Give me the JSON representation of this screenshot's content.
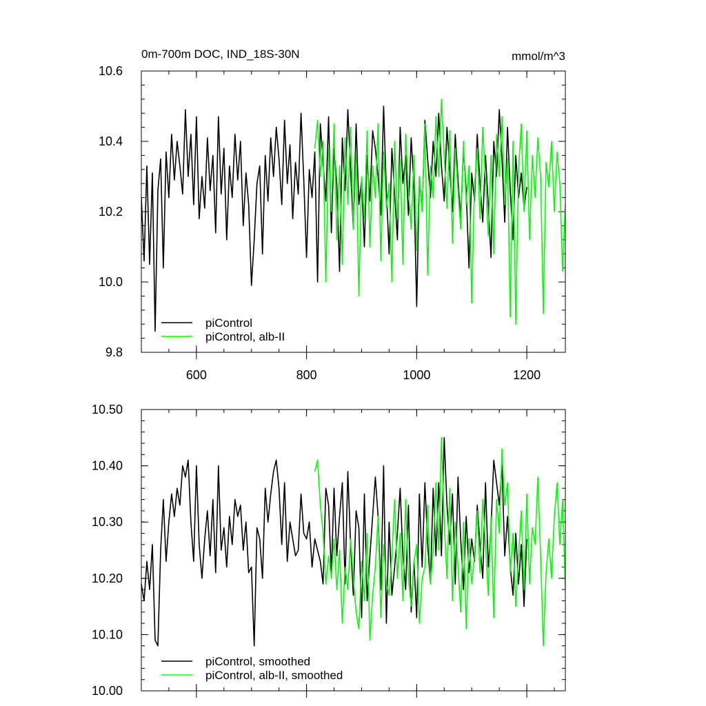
{
  "chart_data": [
    {
      "type": "line",
      "title": "0m-700m DOC, IND_18S-30N",
      "units": "mmol/m^3",
      "xlim": [
        500,
        1270
      ],
      "ylim": [
        9.8,
        10.6
      ],
      "xticks": [
        600,
        800,
        1000,
        1200
      ],
      "xtick_labels": [
        "600",
        "800",
        "1000",
        "1200"
      ],
      "yticks": [
        9.8,
        10.0,
        10.2,
        10.4,
        10.6
      ],
      "ytick_labels": [
        "9.8",
        "10.0",
        "10.2",
        "10.4",
        "10.6"
      ],
      "grid": false,
      "legend_position": "bottom-left",
      "series": [
        {
          "name": "piControl",
          "color": "#000000",
          "x": [
            500,
            505,
            510,
            515,
            520,
            525,
            530,
            535,
            540,
            545,
            550,
            555,
            560,
            565,
            570,
            575,
            580,
            585,
            590,
            595,
            600,
            605,
            610,
            615,
            620,
            625,
            630,
            635,
            640,
            645,
            650,
            655,
            660,
            665,
            670,
            675,
            680,
            685,
            690,
            695,
            700,
            705,
            710,
            715,
            720,
            725,
            730,
            735,
            740,
            745,
            750,
            755,
            760,
            765,
            770,
            775,
            780,
            785,
            790,
            795,
            800,
            805,
            810,
            815,
            820,
            825,
            830,
            835,
            840,
            845,
            850,
            855,
            860,
            865,
            870,
            875,
            880,
            885,
            890,
            895,
            900,
            905,
            910,
            915,
            920,
            925,
            930,
            935,
            940,
            945,
            950,
            955,
            960,
            965,
            970,
            975,
            980,
            985,
            990,
            995,
            1000,
            1005,
            1010,
            1015,
            1020,
            1025,
            1030,
            1035,
            1040,
            1045,
            1050,
            1055,
            1060,
            1065,
            1070,
            1075,
            1080,
            1085,
            1090,
            1095,
            1100,
            1105,
            1110,
            1115,
            1120,
            1125,
            1130,
            1135,
            1140,
            1145,
            1150,
            1155,
            1160,
            1165,
            1170,
            1175,
            1180,
            1185,
            1190,
            1195,
            1200
          ],
          "y": [
            10.24,
            10.06,
            10.33,
            10.05,
            10.31,
            9.86,
            10.26,
            10.35,
            10.04,
            10.37,
            10.24,
            10.42,
            10.29,
            10.4,
            10.33,
            10.25,
            10.49,
            10.3,
            10.42,
            10.22,
            10.47,
            10.18,
            10.3,
            10.21,
            10.41,
            10.26,
            10.36,
            10.14,
            10.47,
            10.25,
            10.38,
            10.12,
            10.33,
            10.24,
            10.42,
            10.29,
            10.4,
            10.16,
            10.31,
            10.22,
            9.99,
            10.12,
            10.28,
            10.33,
            10.08,
            10.36,
            10.23,
            10.41,
            10.3,
            10.44,
            10.35,
            10.22,
            10.46,
            10.28,
            10.39,
            10.18,
            10.34,
            10.25,
            10.48,
            10.29,
            10.07,
            10.32,
            10.24,
            10.37,
            10.0,
            10.45,
            10.34,
            10.23,
            10.47,
            10.14,
            10.38,
            10.28,
            10.03,
            10.41,
            10.26,
            10.49,
            10.32,
            10.15,
            10.45,
            10.22,
            10.29,
            10.1,
            10.36,
            10.23,
            10.43,
            10.38,
            10.3,
            10.19,
            10.5,
            10.26,
            10.08,
            10.38,
            10.25,
            10.12,
            10.44,
            10.28,
            10.36,
            10.19,
            10.41,
            10.27,
            9.93,
            10.3,
            10.2,
            10.46,
            10.35,
            10.24,
            10.4,
            10.3,
            10.48,
            10.33,
            10.23,
            10.44,
            10.32,
            10.2,
            10.42,
            10.29,
            10.18,
            10.38,
            10.26,
            10.04,
            10.31,
            10.23,
            10.42,
            10.28,
            10.17,
            10.36,
            10.22,
            10.07,
            10.4,
            10.3,
            10.49,
            10.35,
            10.17,
            10.44,
            10.26,
            10.12,
            10.36,
            10.24,
            10.31,
            10.21,
            10.27
          ]
        },
        {
          "name": "piControl, alb-II",
          "color": "#00ff00",
          "x": [
            815,
            820,
            825,
            830,
            835,
            840,
            845,
            850,
            855,
            860,
            865,
            870,
            875,
            880,
            885,
            890,
            895,
            900,
            905,
            910,
            915,
            920,
            925,
            930,
            935,
            940,
            945,
            950,
            955,
            960,
            965,
            970,
            975,
            980,
            985,
            990,
            995,
            1000,
            1005,
            1010,
            1015,
            1020,
            1025,
            1030,
            1035,
            1040,
            1045,
            1050,
            1055,
            1060,
            1065,
            1070,
            1075,
            1080,
            1085,
            1090,
            1095,
            1100,
            1105,
            1110,
            1115,
            1120,
            1125,
            1130,
            1135,
            1140,
            1145,
            1150,
            1155,
            1160,
            1165,
            1170,
            1175,
            1180,
            1185,
            1190,
            1195,
            1200,
            1205,
            1210,
            1215,
            1220,
            1225,
            1230,
            1235,
            1240,
            1245,
            1250,
            1255,
            1260,
            1265,
            1270
          ],
          "y": [
            10.38,
            10.46,
            10.3,
            10.4,
            10.0,
            10.38,
            10.2,
            10.45,
            10.12,
            10.33,
            10.05,
            10.41,
            10.22,
            10.44,
            10.15,
            10.36,
            9.96,
            10.3,
            10.18,
            10.43,
            10.1,
            10.33,
            10.24,
            10.45,
            10.06,
            10.37,
            10.21,
            10.28,
            10.0,
            10.4,
            10.18,
            10.35,
            10.05,
            10.42,
            10.26,
            10.15,
            10.36,
            10.09,
            10.3,
            10.2,
            10.45,
            10.02,
            10.33,
            10.24,
            10.47,
            10.3,
            10.52,
            10.36,
            10.21,
            10.43,
            10.11,
            10.38,
            10.26,
            10.15,
            10.4,
            10.22,
            10.33,
            9.94,
            10.27,
            10.38,
            10.18,
            10.44,
            10.29,
            10.13,
            10.36,
            10.08,
            10.42,
            10.3,
            10.47,
            10.22,
            10.35,
            9.9,
            10.4,
            9.88,
            10.32,
            10.45,
            10.2,
            10.43,
            10.12,
            10.36,
            10.24,
            10.41,
            10.3,
            9.91,
            10.34,
            10.27,
            10.4,
            10.2,
            10.37,
            10.28,
            10.03,
            10.22
          ]
        }
      ]
    },
    {
      "type": "line",
      "title": "",
      "units": "",
      "xlim": [
        500,
        1270
      ],
      "ylim": [
        10.0,
        10.5
      ],
      "xticks": [
        600,
        800,
        1000,
        1200
      ],
      "xtick_labels": [
        "",
        "",
        "",
        ""
      ],
      "yticks": [
        10.0,
        10.1,
        10.2,
        10.3,
        10.4,
        10.5
      ],
      "ytick_labels": [
        "10.00",
        "10.10",
        "10.20",
        "10.30",
        "10.40",
        "10.50"
      ],
      "grid": false,
      "legend_position": "bottom-left",
      "series": [
        {
          "name": "piControl, smoothed",
          "color": "#000000",
          "x": [
            500,
            505,
            510,
            515,
            520,
            525,
            530,
            535,
            540,
            545,
            550,
            555,
            560,
            565,
            570,
            575,
            580,
            585,
            590,
            595,
            600,
            605,
            610,
            615,
            620,
            625,
            630,
            635,
            640,
            645,
            650,
            655,
            660,
            665,
            670,
            675,
            680,
            685,
            690,
            695,
            700,
            705,
            710,
            715,
            720,
            725,
            730,
            735,
            740,
            745,
            750,
            755,
            760,
            765,
            770,
            775,
            780,
            785,
            790,
            795,
            800,
            805,
            810,
            815,
            820,
            825,
            830,
            835,
            840,
            845,
            850,
            855,
            860,
            865,
            870,
            875,
            880,
            885,
            890,
            895,
            900,
            905,
            910,
            915,
            920,
            925,
            930,
            935,
            940,
            945,
            950,
            955,
            960,
            965,
            970,
            975,
            980,
            985,
            990,
            995,
            1000,
            1005,
            1010,
            1015,
            1020,
            1025,
            1030,
            1035,
            1040,
            1045,
            1050,
            1055,
            1060,
            1065,
            1070,
            1075,
            1080,
            1085,
            1090,
            1095,
            1100,
            1105,
            1110,
            1115,
            1120,
            1125,
            1130,
            1135,
            1140,
            1145,
            1150,
            1155,
            1160,
            1165,
            1170,
            1175,
            1180,
            1185,
            1190,
            1195,
            1200
          ],
          "y": [
            10.19,
            10.16,
            10.23,
            10.18,
            10.26,
            10.09,
            10.08,
            10.25,
            10.34,
            10.23,
            10.3,
            10.35,
            10.31,
            10.36,
            10.33,
            10.4,
            10.38,
            10.41,
            10.3,
            10.23,
            10.4,
            10.26,
            10.2,
            10.27,
            10.32,
            10.24,
            10.34,
            10.21,
            10.4,
            10.25,
            10.29,
            10.22,
            10.31,
            10.26,
            10.34,
            10.31,
            10.33,
            10.25,
            10.3,
            10.21,
            10.22,
            10.08,
            10.29,
            10.27,
            10.2,
            10.36,
            10.3,
            10.35,
            10.39,
            10.41,
            10.36,
            10.26,
            10.37,
            10.23,
            10.3,
            10.27,
            10.24,
            10.25,
            10.35,
            10.28,
            10.27,
            10.3,
            10.22,
            10.27,
            10.25,
            10.23,
            10.19,
            10.36,
            10.33,
            10.21,
            10.36,
            10.24,
            10.31,
            10.37,
            10.19,
            10.39,
            10.26,
            10.17,
            10.32,
            10.29,
            10.13,
            10.35,
            10.16,
            10.24,
            10.31,
            10.38,
            10.31,
            10.18,
            10.4,
            10.12,
            10.3,
            10.17,
            10.22,
            10.28,
            10.36,
            10.24,
            10.18,
            10.33,
            10.14,
            10.23,
            10.13,
            10.35,
            10.22,
            10.37,
            10.26,
            10.19,
            10.36,
            10.24,
            10.37,
            10.24,
            10.45,
            10.33,
            10.26,
            10.35,
            10.19,
            10.38,
            10.27,
            10.18,
            10.31,
            10.21,
            10.27,
            10.23,
            10.33,
            10.26,
            10.2,
            10.37,
            10.22,
            10.29,
            10.41,
            10.37,
            10.33,
            10.4,
            10.24,
            10.31,
            10.22,
            10.17,
            10.28,
            10.19,
            10.26,
            10.15,
            10.27
          ]
        },
        {
          "name": "piControl, alb-II, smoothed",
          "color": "#00ff00",
          "x": [
            815,
            820,
            825,
            830,
            835,
            840,
            845,
            850,
            855,
            860,
            865,
            870,
            875,
            880,
            885,
            890,
            895,
            900,
            905,
            910,
            915,
            920,
            925,
            930,
            935,
            940,
            945,
            950,
            955,
            960,
            965,
            970,
            975,
            980,
            985,
            990,
            995,
            1000,
            1005,
            1010,
            1015,
            1020,
            1025,
            1030,
            1035,
            1040,
            1045,
            1050,
            1055,
            1060,
            1065,
            1070,
            1075,
            1080,
            1085,
            1090,
            1095,
            1100,
            1105,
            1110,
            1115,
            1120,
            1125,
            1130,
            1135,
            1140,
            1145,
            1150,
            1155,
            1160,
            1165,
            1170,
            1175,
            1180,
            1185,
            1190,
            1195,
            1200,
            1205,
            1210,
            1215,
            1220,
            1225,
            1230,
            1235,
            1240,
            1245,
            1250,
            1255,
            1260,
            1265,
            1270
          ],
          "y": [
            10.39,
            10.41,
            10.33,
            10.28,
            10.19,
            10.24,
            10.2,
            10.27,
            10.18,
            10.25,
            10.12,
            10.22,
            10.18,
            10.27,
            10.2,
            10.14,
            10.11,
            10.23,
            10.16,
            10.28,
            10.09,
            10.17,
            10.22,
            10.31,
            10.13,
            10.26,
            10.19,
            10.17,
            10.24,
            10.34,
            10.2,
            10.28,
            10.16,
            10.34,
            10.2,
            10.15,
            10.23,
            10.26,
            10.12,
            10.2,
            10.22,
            10.33,
            10.19,
            10.25,
            10.37,
            10.25,
            10.45,
            10.3,
            10.2,
            10.36,
            10.16,
            10.3,
            10.22,
            10.14,
            10.3,
            10.11,
            10.27,
            10.19,
            10.24,
            10.32,
            10.21,
            10.34,
            10.26,
            10.17,
            10.31,
            10.13,
            10.34,
            10.28,
            10.43,
            10.33,
            10.37,
            10.21,
            10.28,
            10.15,
            10.24,
            10.32,
            10.18,
            10.35,
            10.19,
            10.29,
            10.26,
            10.38,
            10.24,
            10.08,
            10.21,
            10.27,
            10.2,
            10.31,
            10.37,
            10.26,
            10.34,
            10.18
          ]
        }
      ]
    }
  ]
}
